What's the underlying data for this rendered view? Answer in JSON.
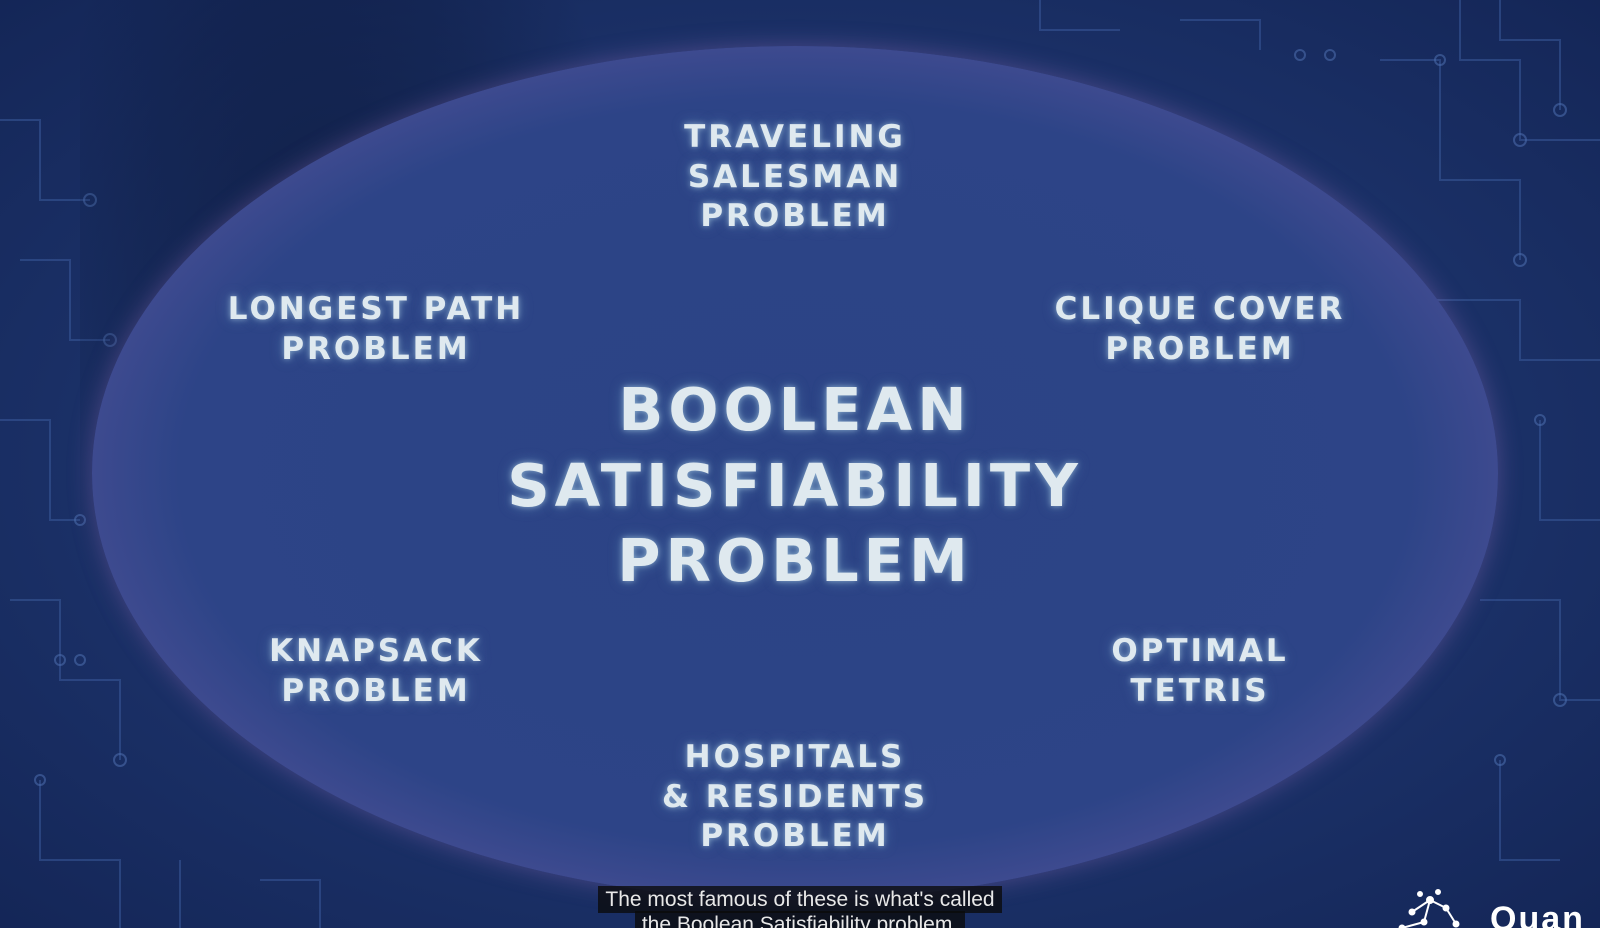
{
  "labels": {
    "center": "BOOLEAN\nSATISFIABILITY\nPROBLEM",
    "traveling_salesman": "TRAVELING\nSALESMAN\nPROBLEM",
    "longest_path": "LONGEST PATH\nPROBLEM",
    "clique_cover": "CLIQUE COVER\nPROBLEM",
    "knapsack": "KNAPSACK\nPROBLEM",
    "optimal_tetris": "OPTIMAL\nTETRIS",
    "hospitals_residents": "HOSPITALS\n& RESIDENTS\nPROBLEM"
  },
  "subtitles": {
    "line1": "The most famous of these is what's called",
    "line2": "the Boolean Satisfiability problem."
  },
  "logo": {
    "text": "Quan",
    "icon": "network-nodes-icon"
  },
  "colors": {
    "background": "#1d3570",
    "ellipse_fill": "#2d4487",
    "ellipse_rim": "#a77dbd",
    "text_glow": "#dfe9ef"
  }
}
